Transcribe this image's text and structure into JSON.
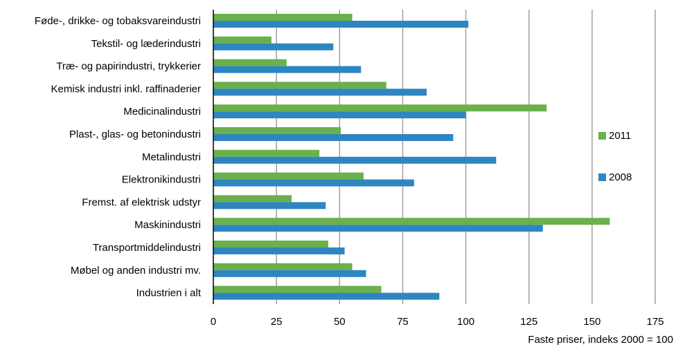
{
  "chart_data": {
    "type": "bar",
    "orientation": "horizontal",
    "categories": [
      "Føde-, drikke- og tobaksvareindustri",
      "Tekstil- og læderindustri",
      "Træ- og papirindustri, trykkerier",
      "Kemisk industri inkl. raffinaderier",
      "Medicinalindustri",
      "Plast-, glas- og betonindustri",
      "Metalindustri",
      "Elektronikindustri",
      "Fremst. af elektrisk udstyr",
      "Maskinindustri",
      "Transportmiddelindustri",
      "Møbel og anden industri mv.",
      "Industrien i alt"
    ],
    "series": [
      {
        "name": "2011",
        "color": "#6ab04c",
        "values": [
          55,
          23,
          29,
          68.5,
          132,
          50.5,
          42,
          59.5,
          31,
          157,
          45.5,
          55,
          66.5
        ]
      },
      {
        "name": "2008",
        "color": "#2e86c1",
        "values": [
          101,
          47.5,
          58.5,
          84.5,
          100,
          95,
          112,
          79.5,
          44.5,
          130.5,
          52,
          60.5,
          89.5
        ]
      }
    ],
    "xlim": [
      0,
      175
    ],
    "xticks": [
      0,
      25,
      50,
      75,
      100,
      125,
      150,
      175
    ],
    "unit_label": "Faste priser, indeks 2000 = 100",
    "grid": "vertical",
    "legend_position": "right"
  }
}
